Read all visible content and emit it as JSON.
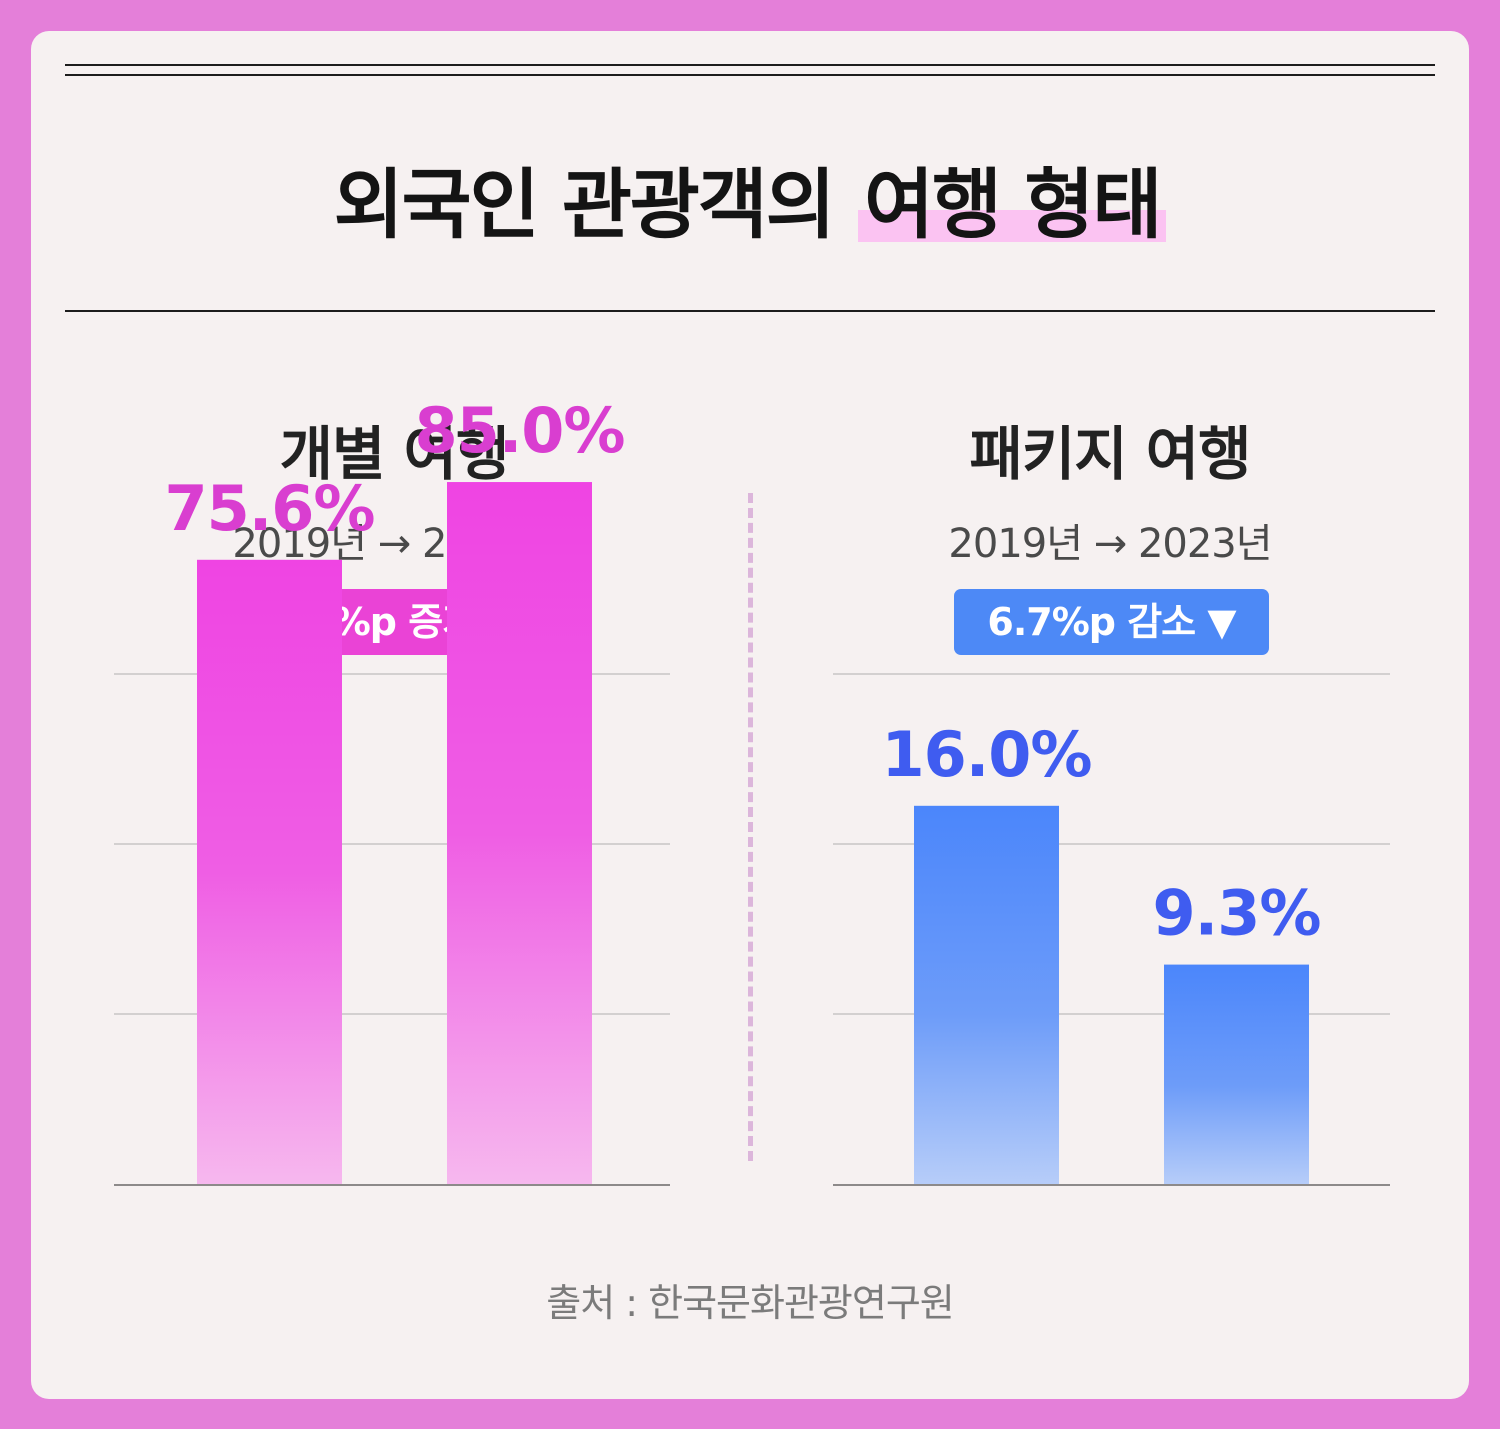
{
  "title_main": "외국인 관광객의",
  "title_highlight": "여행 형태",
  "source": "출처 : 한국문화관광연구원",
  "colors": {
    "pink": "#ea43d6",
    "blue": "#4d89f6",
    "pink_text": "#d93ed0",
    "blue_text": "#3f5cf0"
  },
  "chart_data": [
    {
      "type": "bar",
      "title": "개별 여행",
      "subtitle": "2019년 → 2023년",
      "badge": "9.4%p 증가 ▲",
      "categories": [
        "2019년",
        "2023년"
      ],
      "values": [
        75.6,
        85.0
      ],
      "value_labels": [
        "75.6%",
        "85.0%"
      ],
      "ylim": [
        0,
        100
      ],
      "grid": true
    },
    {
      "type": "bar",
      "title": "패키지 여행",
      "subtitle": "2019년 → 2023년",
      "badge": "6.7%p 감소 ▼",
      "categories": [
        "2019년",
        "2023년"
      ],
      "values": [
        16.0,
        9.3
      ],
      "value_labels": [
        "16.0%",
        "9.3%"
      ],
      "ylim": [
        0,
        22
      ],
      "grid": true
    }
  ]
}
